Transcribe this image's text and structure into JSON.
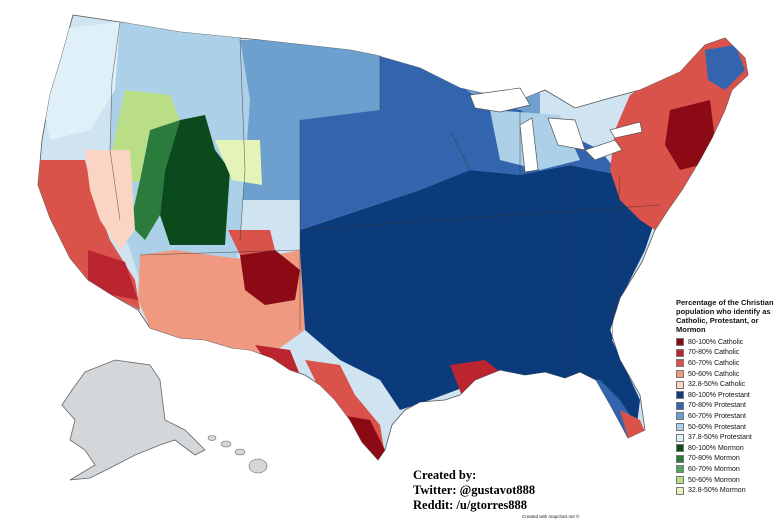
{
  "legend": {
    "title": "Percentage of the Christian population who identify as Catholic, Protestant, or Mormon",
    "items": [
      {
        "label": "80-100% Catholic",
        "color": "#8c0a16"
      },
      {
        "label": "70-80% Catholic",
        "color": "#bb2530"
      },
      {
        "label": "60-70% Catholic",
        "color": "#d9534a"
      },
      {
        "label": "50-60% Catholic",
        "color": "#ef9a80"
      },
      {
        "label": "32.8-50% Catholic",
        "color": "#fbd5c4"
      },
      {
        "label": "80-100% Protestant",
        "color": "#0c3b7c"
      },
      {
        "label": "70-80% Protestant",
        "color": "#3265ad"
      },
      {
        "label": "60-70% Protestant",
        "color": "#6d9fcf"
      },
      {
        "label": "50-60% Protestant",
        "color": "#acd0e8"
      },
      {
        "label": "37.8-50% Protestant",
        "color": "#dff0f8"
      },
      {
        "label": "80-100% Mormon",
        "color": "#0b4a1c"
      },
      {
        "label": "70-80% Mormon",
        "color": "#2b7c3c"
      },
      {
        "label": "60-70% Mormon",
        "color": "#52a867"
      },
      {
        "label": "50-60% Mormon",
        "color": "#b9de86"
      },
      {
        "label": "32.8-50% Mormon",
        "color": "#e4f3b8"
      }
    ]
  },
  "credits": {
    "line1": "Created by:",
    "line2": "Twitter: @gustavot888",
    "line3": "Reddit: /u/gtorres888"
  },
  "footer": "Created with mapchart.net ©",
  "colors": {
    "alaska_hawaii": "#d3d7da",
    "border": "#555555",
    "water": "#ffffff"
  }
}
